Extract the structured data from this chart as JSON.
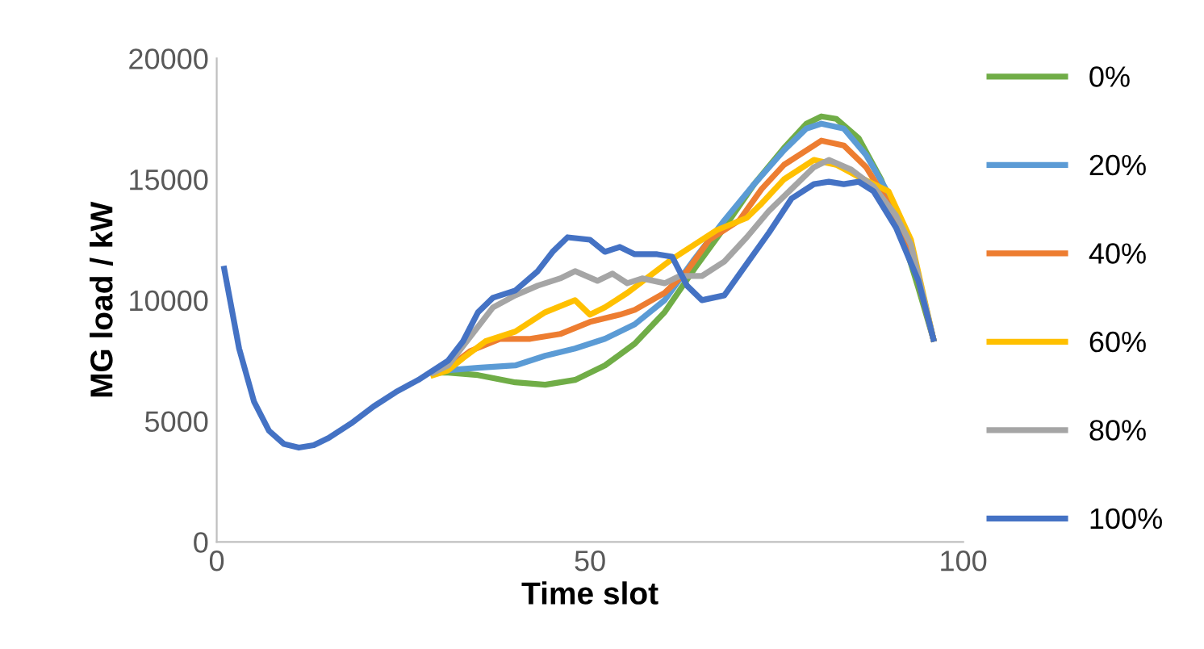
{
  "chart_data": {
    "type": "line",
    "xlabel": "Time slot",
    "ylabel": "MG load / kW",
    "xlim": [
      0,
      100
    ],
    "xticks": [
      0,
      50,
      100
    ],
    "ylim": [
      0,
      20000
    ],
    "yticks": [
      0,
      5000,
      10000,
      15000,
      20000
    ],
    "grid": false,
    "legend": "right",
    "marker": "none",
    "line_style": "solid",
    "series": [
      {
        "name": "0%",
        "color": "#70ad47",
        "x": [
          29,
          31,
          35,
          40,
          44,
          48,
          52,
          56,
          60,
          64,
          68,
          72,
          76,
          79,
          81,
          83,
          86,
          89,
          92,
          94,
          96
        ],
        "values": [
          7000,
          7000,
          6900,
          6600,
          6500,
          6700,
          7300,
          8200,
          9500,
          11300,
          13000,
          14800,
          16300,
          17300,
          17600,
          17500,
          16700,
          15000,
          12500,
          10500,
          8400
        ]
      },
      {
        "name": "20%",
        "color": "#5b9bd5",
        "x": [
          29,
          31,
          35,
          40,
          44,
          48,
          52,
          56,
          60,
          64,
          68,
          72,
          76,
          79,
          81,
          84,
          87,
          90,
          93,
          96
        ],
        "values": [
          7000,
          7100,
          7200,
          7300,
          7700,
          8000,
          8400,
          9000,
          10000,
          11700,
          13300,
          14800,
          16200,
          17100,
          17300,
          17100,
          16000,
          14400,
          12300,
          8400
        ]
      },
      {
        "name": "40%",
        "color": "#ed7d31",
        "x": [
          29,
          31,
          34,
          38,
          42,
          46,
          50,
          54,
          56,
          60,
          63,
          66,
          70,
          73,
          76,
          79,
          81,
          84,
          87,
          90,
          93,
          96
        ],
        "values": [
          7000,
          7200,
          7900,
          8400,
          8400,
          8600,
          9100,
          9400,
          9600,
          10300,
          11200,
          12500,
          13300,
          14600,
          15600,
          16200,
          16600,
          16400,
          15500,
          14000,
          12000,
          8400
        ]
      },
      {
        "name": "60%",
        "color": "#ffc000",
        "x": [
          29,
          31,
          33,
          36,
          40,
          44,
          48,
          50,
          52,
          55,
          58,
          61,
          64,
          67,
          71,
          73,
          76,
          80,
          83,
          86,
          90,
          93,
          96
        ],
        "values": [
          6900,
          7100,
          7600,
          8300,
          8700,
          9500,
          10000,
          9400,
          9700,
          10300,
          11000,
          11700,
          12300,
          12900,
          13400,
          14000,
          15000,
          15800,
          15600,
          15100,
          14500,
          12500,
          8400
        ]
      },
      {
        "name": "80%",
        "color": "#a5a5a5",
        "x": [
          29,
          31,
          34,
          37,
          40,
          43,
          46,
          48,
          51,
          53,
          55,
          57,
          60,
          62,
          65,
          68,
          71,
          74,
          77,
          80,
          82,
          85,
          88,
          91,
          93,
          96
        ],
        "values": [
          7000,
          7300,
          8500,
          9700,
          10200,
          10600,
          10900,
          11200,
          10800,
          11100,
          10700,
          10900,
          10700,
          11000,
          11000,
          11600,
          12600,
          13700,
          14600,
          15500,
          15800,
          15400,
          14700,
          13500,
          12300,
          8400
        ]
      },
      {
        "name": "100%",
        "color": "#4472c4",
        "x": [
          1,
          3,
          5,
          7,
          9,
          11,
          13,
          15,
          18,
          21,
          24,
          27,
          29,
          31,
          33,
          35,
          37,
          40,
          43,
          45,
          47,
          50,
          52,
          54,
          56,
          59,
          61,
          63,
          65,
          68,
          71,
          74,
          77,
          80,
          82,
          84,
          86,
          88,
          91,
          94,
          96
        ],
        "values": [
          11300,
          8000,
          5800,
          4600,
          4050,
          3900,
          4000,
          4300,
          4900,
          5600,
          6200,
          6700,
          7100,
          7500,
          8300,
          9500,
          10100,
          10400,
          11200,
          12000,
          12600,
          12500,
          12000,
          12200,
          11900,
          11900,
          11800,
          10600,
          10000,
          10200,
          11500,
          12800,
          14200,
          14800,
          14900,
          14800,
          14900,
          14500,
          13000,
          10800,
          8400
        ]
      }
    ]
  }
}
